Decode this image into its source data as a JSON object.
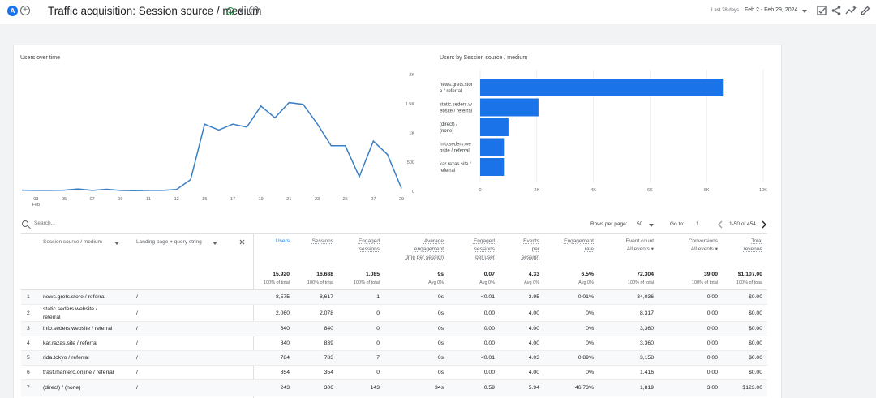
{
  "header": {
    "avatar_letter": "A",
    "title": "Traffic acquisition: Session source / medium",
    "date_label": "Last 28 days",
    "date_range": "Feb 2 - Feb 29, 2024"
  },
  "users_over_time": {
    "title": "Users over time",
    "chart_data": {
      "type": "line",
      "title": "Users over time",
      "x_ticks": [
        "03",
        "05",
        "07",
        "09",
        "11",
        "13",
        "15",
        "17",
        "19",
        "21",
        "23",
        "25",
        "27",
        "29"
      ],
      "x_month_label": "Feb",
      "y_ticks": [
        "0",
        "500",
        "1K",
        "1.5K",
        "2K"
      ],
      "ylim": [
        0,
        2000
      ],
      "x": [
        2,
        3,
        4,
        5,
        6,
        7,
        8,
        9,
        10,
        11,
        12,
        13,
        14,
        15,
        16,
        17,
        18,
        19,
        20,
        21,
        22,
        23,
        24,
        25,
        26,
        27,
        28,
        29
      ],
      "y": [
        20,
        15,
        15,
        20,
        40,
        15,
        35,
        15,
        10,
        15,
        15,
        30,
        200,
        1150,
        1050,
        1150,
        1100,
        1460,
        1260,
        1520,
        1490,
        1160,
        780,
        780,
        250,
        860,
        630,
        50
      ]
    }
  },
  "users_by_source": {
    "title": "Users by Session source / medium",
    "chart_data": {
      "type": "bar",
      "orientation": "horizontal",
      "title": "Users by Session source / medium",
      "categories": [
        [
          "news.grets.stor",
          "e / referral"
        ],
        [
          "static.seders.w",
          "ebsite / referral"
        ],
        [
          "(direct) /",
          "(none)"
        ],
        [
          "info.seders.we",
          "bsite / referral"
        ],
        [
          "kar.razas.site /",
          "referral"
        ]
      ],
      "values": [
        8575,
        2060,
        1000,
        840,
        840
      ],
      "x_ticks": [
        "0",
        "2K",
        "4K",
        "6K",
        "8K",
        "10K"
      ],
      "xlim": [
        0,
        10000
      ],
      "color": "#1a73e8"
    }
  },
  "table": {
    "search_placeholder": "Search...",
    "rows_per_page_label": "Rows per page:",
    "rows_per_page_value": "50",
    "goto_label": "Go to:",
    "goto_value": "1",
    "page_range": "1-50 of 454",
    "dim1_header": "Session source / medium",
    "dim2_header": "Landing page + query string",
    "columns": [
      {
        "label": [
          "Users"
        ],
        "sorted": true,
        "total": "15,920",
        "sub": "100% of total"
      },
      {
        "label": [
          "Sessions"
        ],
        "total": "16,688",
        "sub": "100% of total"
      },
      {
        "label": [
          "Engaged",
          "sessions"
        ],
        "total": "1,085",
        "sub": "100% of total"
      },
      {
        "label": [
          "Average",
          "engagement",
          "time per session"
        ],
        "total": "9s",
        "sub": "Avg 0%"
      },
      {
        "label": [
          "Engaged",
          "sessions",
          "per user"
        ],
        "total": "0.07",
        "sub": "Avg 0%"
      },
      {
        "label": [
          "Events",
          "per",
          "session"
        ],
        "total": "4.33",
        "sub": "Avg 0%"
      },
      {
        "label": [
          "Engagement",
          "rate"
        ],
        "total": "6.5%",
        "sub": "Avg 0%"
      },
      {
        "label": [
          "Event count",
          "All events"
        ],
        "dropdown": true,
        "total": "72,304",
        "sub": "100% of total"
      },
      {
        "label": [
          "Conversions",
          "All events"
        ],
        "dropdown": true,
        "total": "39.00",
        "sub": "100% of total"
      },
      {
        "label": [
          "Total",
          "revenue"
        ],
        "total": "$1,107.00",
        "sub": "100% of total"
      }
    ],
    "rows": [
      {
        "n": "1",
        "source": [
          "news.grets.store / referral"
        ],
        "landing": "/",
        "vals": [
          "8,575",
          "8,617",
          "1",
          "0s",
          "<0.01",
          "3.95",
          "0.01%",
          "34,036",
          "0.00",
          "$0.00"
        ]
      },
      {
        "n": "2",
        "source": [
          "static.seders.website /",
          "referral"
        ],
        "landing": "/",
        "vals": [
          "2,060",
          "2,078",
          "0",
          "0s",
          "0.00",
          "4.00",
          "0%",
          "8,317",
          "0.00",
          "$0.00"
        ]
      },
      {
        "n": "3",
        "source": [
          "info.seders.website / referral"
        ],
        "landing": "/",
        "vals": [
          "840",
          "840",
          "0",
          "0s",
          "0.00",
          "4.00",
          "0%",
          "3,360",
          "0.00",
          "$0.00"
        ]
      },
      {
        "n": "4",
        "source": [
          "kar.razas.site / referral"
        ],
        "landing": "/",
        "vals": [
          "840",
          "839",
          "0",
          "0s",
          "0.00",
          "4.00",
          "0%",
          "3,360",
          "0.00",
          "$0.00"
        ]
      },
      {
        "n": "5",
        "source": [
          "rida.tokyo / referral"
        ],
        "landing": "/",
        "vals": [
          "784",
          "783",
          "7",
          "0s",
          "<0.01",
          "4.03",
          "0.89%",
          "3,158",
          "0.00",
          "$0.00"
        ]
      },
      {
        "n": "6",
        "source": [
          "trast.mantero.online / referral"
        ],
        "landing": "/",
        "vals": [
          "354",
          "354",
          "0",
          "0s",
          "0.00",
          "4.00",
          "0%",
          "1,416",
          "0.00",
          "$0.00"
        ]
      },
      {
        "n": "7",
        "source": [
          "(direct) / (none)"
        ],
        "landing": "/",
        "vals": [
          "243",
          "306",
          "143",
          "34s",
          "0.59",
          "5.94",
          "46.73%",
          "1,819",
          "3.00",
          "$123.00"
        ]
      }
    ]
  }
}
